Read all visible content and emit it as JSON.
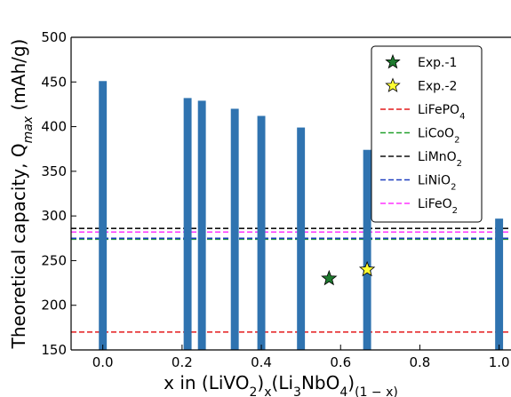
{
  "chart_data": {
    "type": "bar",
    "xlabel": "x in (LiVO2)x(Li3NbO4)(1 − x)",
    "ylabel": "Theoretical capacity, Qmax (mAh/g)",
    "xlim": [
      -0.08,
      1.03
    ],
    "ylim": [
      150,
      500
    ],
    "xticks": [
      0.0,
      0.2,
      0.4,
      0.6,
      0.8,
      1.0
    ],
    "yticks": [
      150,
      200,
      250,
      300,
      350,
      400,
      450,
      500
    ],
    "xtick_labels": [
      "0.0",
      "0.2",
      "0.4",
      "0.6",
      "0.8",
      "1.0"
    ],
    "ytick_labels": [
      "150",
      "200",
      "250",
      "300",
      "350",
      "400",
      "450",
      "500"
    ],
    "bar_width": 0.02,
    "bar_color": "#2f73b0",
    "bars": [
      {
        "x": 0.0,
        "value": 451
      },
      {
        "x": 0.214,
        "value": 432
      },
      {
        "x": 0.25,
        "value": 429
      },
      {
        "x": 0.333,
        "value": 420
      },
      {
        "x": 0.4,
        "value": 412
      },
      {
        "x": 0.5,
        "value": 399
      },
      {
        "x": 0.667,
        "value": 374
      },
      {
        "x": 1.0,
        "value": 297
      }
    ],
    "points": [
      {
        "name": "Exp.-1",
        "x": 0.571,
        "y": 230,
        "color": "#1e7a2e",
        "marker": "star"
      },
      {
        "name": "Exp.-2",
        "x": 0.667,
        "y": 240,
        "color": "#ffff33",
        "marker": "star"
      }
    ],
    "reference_lines": [
      {
        "name": "LiFePO4",
        "y": 170,
        "color": "#e41a1c"
      },
      {
        "name": "LiCoO2",
        "y": 274,
        "color": "#22a02c"
      },
      {
        "name": "LiMnO2",
        "y": 286,
        "color": "#111111"
      },
      {
        "name": "LiNiO2",
        "y": 275,
        "color": "#1f3fbf"
      },
      {
        "name": "LiFeO2",
        "y": 282,
        "color": "#ff33ff"
      }
    ],
    "legend_position": "top-right",
    "legend_entries": [
      {
        "kind": "star",
        "label": "Exp.-1",
        "color": "#1e7a2e"
      },
      {
        "kind": "star",
        "label": "Exp.-2",
        "color": "#ffff33"
      },
      {
        "kind": "line",
        "label": "LiFePO",
        "sub": "4",
        "color": "#e41a1c"
      },
      {
        "kind": "line",
        "label": "LiCoO",
        "sub": "2",
        "color": "#22a02c"
      },
      {
        "kind": "line",
        "label": "LiMnO",
        "sub": "2",
        "color": "#111111"
      },
      {
        "kind": "line",
        "label": "LiNiO",
        "sub": "2",
        "color": "#1f3fbf"
      },
      {
        "kind": "line",
        "label": "LiFeO",
        "sub": "2",
        "color": "#ff33ff"
      }
    ]
  }
}
